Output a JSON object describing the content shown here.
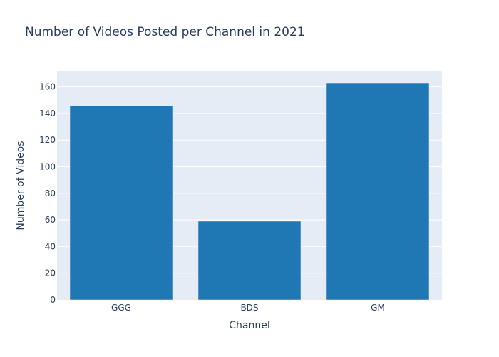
{
  "chart_data": {
    "type": "bar",
    "title": "Number of Videos Posted per Channel in 2021",
    "xlabel": "Channel",
    "ylabel": "Number of Videos",
    "categories": [
      "GGG",
      "BDS",
      "GM"
    ],
    "values": [
      146,
      59,
      163
    ],
    "ylim": [
      0,
      171.6
    ],
    "yticks": [
      0,
      20,
      40,
      60,
      80,
      100,
      120,
      140,
      160
    ],
    "grid": true,
    "legend": "none",
    "colors": {
      "bar": "#1f77b4",
      "plot_background": "#e5ecf6",
      "gridline": "#ffffff",
      "text": "#2a3f5f"
    }
  }
}
